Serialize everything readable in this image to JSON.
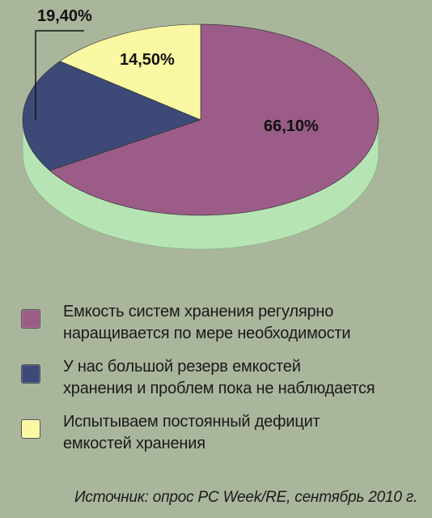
{
  "chart_data": {
    "type": "pie",
    "slices": [
      {
        "label": "66,10%",
        "value": 66.1,
        "color": "#9b5d87"
      },
      {
        "label": "19,40%",
        "value": 19.4,
        "color": "#3d4a78"
      },
      {
        "label": "14,50%",
        "value": 14.5,
        "color": "#fbf8a3"
      }
    ],
    "side_color": "#b7e4b4"
  },
  "legend": [
    {
      "text": "Емкость систем хранения регулярно\nнаращивается по мере необходимости",
      "color": "#9b5d87"
    },
    {
      "text": "У нас большой резерв емкостей\nхранения и проблем пока не наблюдается",
      "color": "#3d4a78"
    },
    {
      "text": "Испытываем постоянный дефицит\nемкостей хранения",
      "color": "#fbf8a3"
    }
  ],
  "source": "Источник: опрос PC Week/RE, сентябрь 2010 г."
}
